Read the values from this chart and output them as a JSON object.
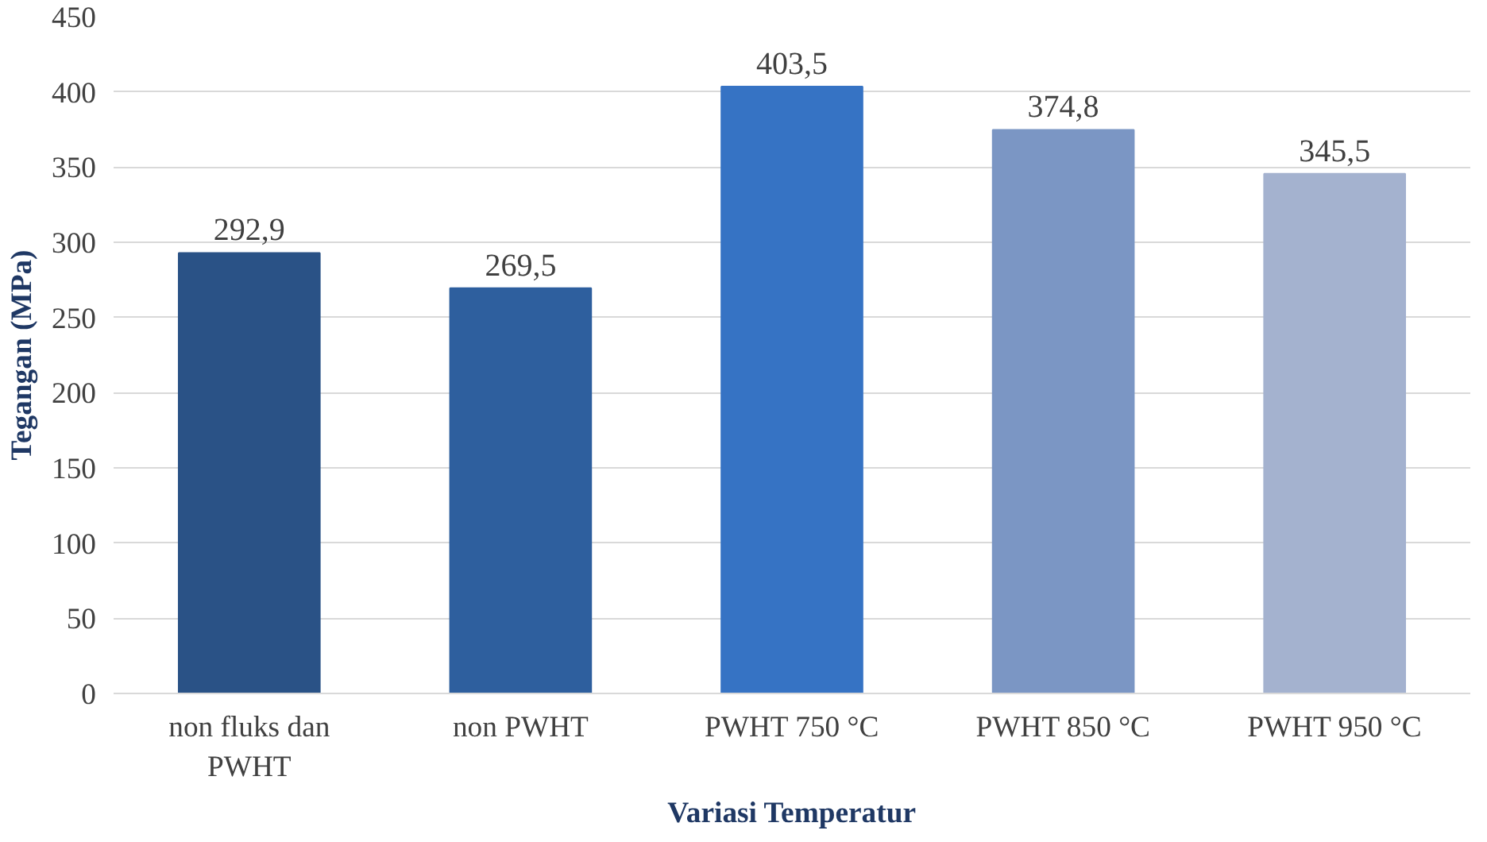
{
  "chart_data": {
    "type": "bar",
    "xlabel": "Variasi Temperatur",
    "ylabel": "Tegangan (MPa)",
    "categories": [
      "non fluks dan PWHT",
      "non PWHT",
      "PWHT 750 °C",
      "PWHT 850 °C",
      "PWHT 950 °C"
    ],
    "values": [
      292.9,
      269.5,
      403.5,
      374.8,
      345.5
    ],
    "value_labels": [
      "292,9",
      "269,5",
      "403,5",
      "374,8",
      "345,5"
    ],
    "colors": [
      "#2a5286",
      "#2e5f9e",
      "#3673c4",
      "#7b96c4",
      "#a4b2cf"
    ],
    "ylim": [
      0,
      450
    ],
    "yticks": [
      0,
      50,
      100,
      150,
      200,
      250,
      300,
      350,
      400,
      450
    ],
    "grid": "y"
  }
}
